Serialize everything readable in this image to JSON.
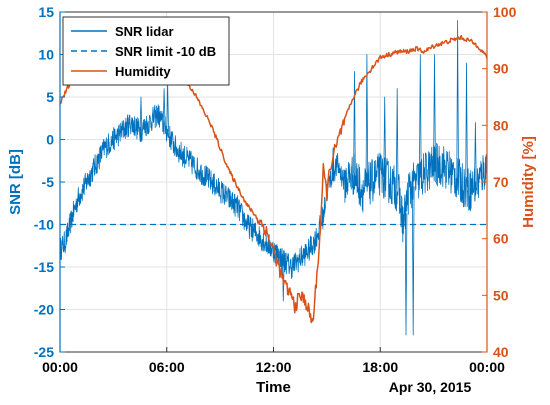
{
  "chart_data": {
    "type": "line",
    "xlabel": "Time",
    "date_annotation": "Apr 30, 2015",
    "x_ticks": [
      "00:00",
      "06:00",
      "12:00",
      "18:00",
      "00:00"
    ],
    "x_range_hours": [
      0,
      24
    ],
    "y_left": {
      "label": "SNR [dB]",
      "ylim": [
        -25,
        15
      ],
      "ticks": [
        "15",
        "10",
        "5",
        "0",
        "-5",
        "-10",
        "-15",
        "-20",
        "-25"
      ],
      "color": "#0072BD"
    },
    "y_right": {
      "label": "Humidity [%]",
      "ylim": [
        40,
        100
      ],
      "ticks": [
        "100",
        "90",
        "80",
        "70",
        "60",
        "50",
        "40"
      ],
      "color": "#D95319"
    },
    "grid": true,
    "legend_placement": "top-left",
    "series": [
      {
        "name": "SNR lidar",
        "axis": "left",
        "style": "solid",
        "color": "#0072BD",
        "x_hours": [
          0,
          0.3,
          0.7,
          1.0,
          1.5,
          2.0,
          2.5,
          3.0,
          3.5,
          4.0,
          4.5,
          5.0,
          5.5,
          6.0,
          6.5,
          7.0,
          7.5,
          8.0,
          8.5,
          9.0,
          9.5,
          10.0,
          10.5,
          11.0,
          11.5,
          12.0,
          12.5,
          13.0,
          13.5,
          14.0,
          14.3,
          14.5,
          14.8,
          15.0,
          15.3,
          15.6,
          16.0,
          16.5,
          17.0,
          17.5,
          18.0,
          18.5,
          19.0,
          19.3,
          19.6,
          20.0,
          20.5,
          21.0,
          21.5,
          22.0,
          22.5,
          23.0,
          23.5,
          24.0
        ],
        "values": [
          -13,
          -12,
          -9,
          -7,
          -5,
          -3,
          -1,
          0,
          1,
          2,
          1,
          2,
          3,
          1,
          -1,
          -2,
          -3,
          -4,
          -5,
          -6,
          -7,
          -8,
          -10,
          -11,
          -12,
          -13,
          -14,
          -15,
          -14,
          -13,
          -12,
          -11,
          -9,
          -6,
          -4,
          -3,
          -5,
          -4,
          -6,
          -5,
          -4,
          -5,
          -6,
          -10,
          -6,
          -5,
          -4,
          -3,
          -3,
          -4,
          -5,
          -6,
          -5,
          -3
        ],
        "spikes": [
          {
            "x_hours": 1.5,
            "value": -4
          },
          {
            "x_hours": 4.5,
            "value": 5
          },
          {
            "x_hours": 5.8,
            "value": 6
          },
          {
            "x_hours": 6.0,
            "value": 7
          },
          {
            "x_hours": 12.5,
            "value": -19
          },
          {
            "x_hours": 15.3,
            "value": -1
          },
          {
            "x_hours": 16.5,
            "value": 8
          },
          {
            "x_hours": 17.2,
            "value": 10
          },
          {
            "x_hours": 18.2,
            "value": 5
          },
          {
            "x_hours": 18.9,
            "value": 6
          },
          {
            "x_hours": 19.4,
            "value": -23
          },
          {
            "x_hours": 19.8,
            "value": -23
          },
          {
            "x_hours": 20.2,
            "value": 10
          },
          {
            "x_hours": 21.0,
            "value": 10
          },
          {
            "x_hours": 22.3,
            "value": 14
          },
          {
            "x_hours": 22.8,
            "value": 9
          },
          {
            "x_hours": 23.3,
            "value": 2
          }
        ]
      },
      {
        "name": "SNR limit -10 dB",
        "axis": "left",
        "style": "dashed",
        "color": "#0072BD",
        "x_hours": [
          0,
          24
        ],
        "values": [
          -10,
          -10
        ]
      },
      {
        "name": "Humidity",
        "axis": "right",
        "style": "solid",
        "color": "#D95319",
        "x_hours": [
          0,
          0.5,
          1.0,
          1.5,
          2.0,
          3.0,
          4.0,
          5.0,
          6.0,
          6.5,
          7.0,
          7.5,
          8.0,
          8.5,
          9.0,
          9.5,
          10.0,
          10.5,
          11.0,
          11.5,
          12.0,
          12.3,
          12.6,
          13.0,
          13.2,
          13.5,
          13.8,
          14.0,
          14.2,
          14.4,
          14.6,
          14.8,
          15.0,
          15.2,
          15.5,
          16.0,
          16.5,
          17.0,
          17.5,
          18.0,
          18.5,
          19.0,
          19.5,
          20.0,
          20.5,
          21.0,
          21.5,
          22.0,
          22.5,
          23.0,
          23.5,
          24.0
        ],
        "values": [
          84,
          87,
          90,
          91.5,
          92,
          92,
          92,
          91.5,
          91,
          90,
          88,
          86,
          83,
          80,
          76,
          72,
          69,
          66,
          64,
          62,
          58,
          55,
          52,
          50,
          48,
          50,
          49,
          47,
          45,
          52,
          60,
          72,
          68,
          73,
          76,
          81,
          85,
          88,
          90,
          92,
          92.5,
          93,
          93,
          93.5,
          93,
          94,
          94.5,
          95,
          95.5,
          95,
          94,
          92
        ]
      }
    ]
  }
}
